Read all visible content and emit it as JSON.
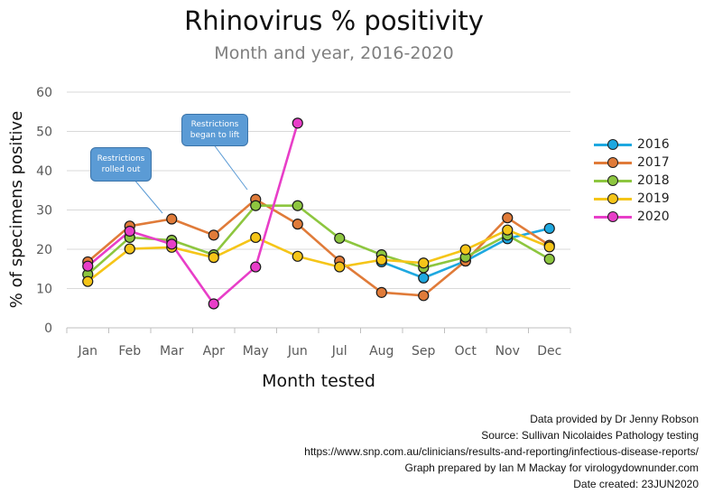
{
  "chart_data": {
    "type": "line",
    "title": "Rhinovirus % positivity",
    "subtitle": "Month and year, 2016-2020",
    "xlabel": "Month tested",
    "ylabel": "% of specimens positive",
    "ylim": [
      0,
      60
    ],
    "yticks": [
      "0",
      "10",
      "20",
      "30",
      "40",
      "50",
      "60"
    ],
    "categories": [
      "Jan",
      "Feb",
      "Mar",
      "Apr",
      "May",
      "Jun",
      "Jul",
      "Aug",
      "Sep",
      "Oct",
      "Nov",
      "Dec"
    ],
    "grid": true,
    "legend_position": "right",
    "series": [
      {
        "name": "2016",
        "color": "#1ea8e0",
        "values": [
          null,
          null,
          null,
          null,
          null,
          null,
          null,
          16.8,
          12.7,
          17.0,
          22.7,
          25.3
        ]
      },
      {
        "name": "2017",
        "color": "#e07b39",
        "values": [
          16.8,
          25.9,
          27.7,
          23.6,
          32.7,
          26.4,
          17.0,
          9.0,
          8.2,
          17.0,
          28.0,
          21.0
        ]
      },
      {
        "name": "2018",
        "color": "#8dc63f",
        "values": [
          13.6,
          23.0,
          22.3,
          18.6,
          31.1,
          31.1,
          22.8,
          18.6,
          15.3,
          18.0,
          23.6,
          17.5
        ]
      },
      {
        "name": "2019",
        "color": "#f5c518",
        "values": [
          11.8,
          20.1,
          20.5,
          17.9,
          23.0,
          18.2,
          15.5,
          17.3,
          16.5,
          19.9,
          24.9,
          20.6
        ]
      },
      {
        "name": "2020",
        "color": "#e83ec8",
        "values": [
          15.7,
          24.6,
          21.3,
          6.1,
          15.5,
          52.1,
          null,
          null,
          null,
          null,
          null,
          null
        ]
      }
    ],
    "annotations": [
      {
        "text": "Restrictions rolled out"
      },
      {
        "text": "Restrictions began to lift"
      }
    ]
  },
  "credits": [
    "Data provided by Dr Jenny Robson",
    "Source: Sullivan Nicolaides Pathology testing",
    "https://www.snp.com.au/clinicians/results-and-reporting/infectious-disease-reports/",
    "Graph prepared by Ian M Mackay for virologydownunder.com",
    "Date created: 23JUN2020"
  ]
}
